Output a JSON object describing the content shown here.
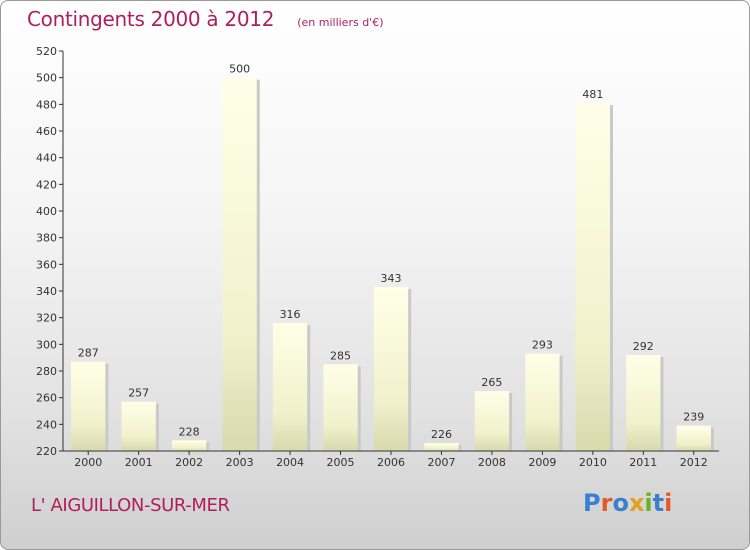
{
  "header": {
    "title": "Contingents 2000 à 2012",
    "unit_note": "(en milliers d'€)"
  },
  "footer": {
    "place_name": "L' AIGUILLON-SUR-MER",
    "logo_text": "Proxiti",
    "logo_colors": [
      "#3a7fd0",
      "#e05a2a",
      "#3a7fd0",
      "#e0a020",
      "#6ab02a",
      "#3a7fd0",
      "#e05a2a"
    ]
  },
  "chart_data": {
    "type": "bar",
    "categories": [
      "2000",
      "2001",
      "2002",
      "2003",
      "2004",
      "2005",
      "2006",
      "2007",
      "2008",
      "2009",
      "2010",
      "2011",
      "2012"
    ],
    "values": [
      287,
      257,
      228,
      500,
      316,
      285,
      343,
      226,
      265,
      293,
      481,
      292,
      239
    ],
    "title": "Contingents 2000 à 2012",
    "ylim": [
      220,
      520
    ],
    "yticks": [
      220,
      240,
      260,
      280,
      300,
      320,
      340,
      360,
      380,
      400,
      420,
      440,
      460,
      480,
      500,
      520
    ],
    "grid": false,
    "bar_color": "#f7f7d4",
    "axis_color": "#333333"
  }
}
